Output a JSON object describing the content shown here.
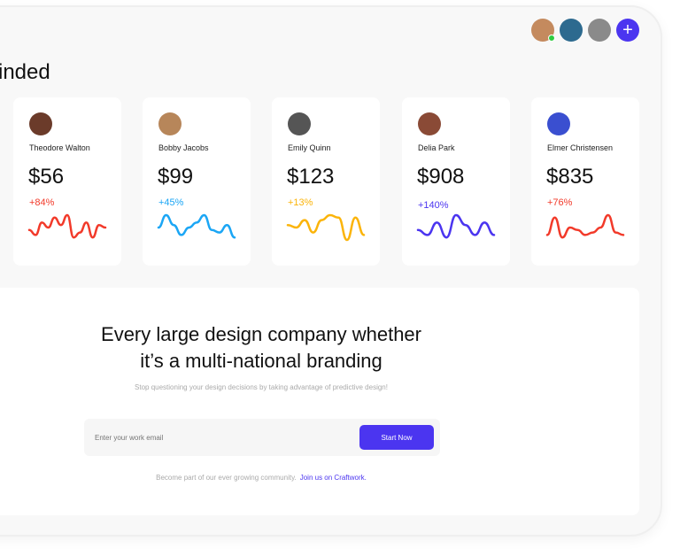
{
  "header": {
    "title": "inded",
    "avatars": [
      {
        "color": "#c48a5e",
        "online": true
      },
      {
        "color": "#2d6a8f"
      },
      {
        "color": "#8a8a8a"
      }
    ],
    "add_label": "+",
    "accent": "#4b35f0"
  },
  "cards": [
    {
      "name": "Theodore Walton",
      "amount": "$56",
      "change": "+84%",
      "color": "#f23a2a",
      "avatar": "#6b3b2a",
      "spark": [
        0.4,
        0.2,
        0.7,
        0.5,
        0.9,
        0.6,
        1,
        0.1,
        0.3,
        0.7,
        0.1,
        0.6,
        0.5
      ]
    },
    {
      "name": "Bobby Jacobs",
      "amount": "$99",
      "change": "+45%",
      "color": "#1ba6f5",
      "avatar": "#b7865a",
      "spark": [
        0.5,
        1,
        0.6,
        0.2,
        0.5,
        0.7,
        1,
        0.4,
        0.3,
        0.6,
        0.1
      ]
    },
    {
      "name": "Emily Quinn",
      "amount": "$123",
      "change": "+13%",
      "color": "#fbb40a",
      "avatar": "#555",
      "spark": [
        0.6,
        0.5,
        0.8,
        0.3,
        0.8,
        1,
        0.9,
        0,
        0.9,
        0.2
      ]
    },
    {
      "name": "Delia Park",
      "amount": "$908",
      "change": "+140%",
      "color": "#4b35f0",
      "avatar": "#8a4a36",
      "spark": [
        0.4,
        0.2,
        0.7,
        0.1,
        1,
        0.6,
        0.2,
        0.7,
        0.2
      ]
    },
    {
      "name": "Elmer Christensen",
      "amount": "$835",
      "change": "+76%",
      "color": "#f23a2a",
      "avatar": "#3a4fd0",
      "spark": [
        0.2,
        0.9,
        0.1,
        0.5,
        0.4,
        0.2,
        0.3,
        0.5,
        1,
        0.3,
        0.2
      ]
    }
  ],
  "promo": {
    "headline_1": "Every large design company whether",
    "headline_2": "it’s a multi-national branding",
    "subtitle": "Stop questioning your design decisions by taking advantage of predictive design!",
    "email_placeholder": "Enter your work email",
    "button": "Start Now",
    "footer": "Become part of our ever growing community.",
    "footer_link": "Join us on Craftwork."
  }
}
